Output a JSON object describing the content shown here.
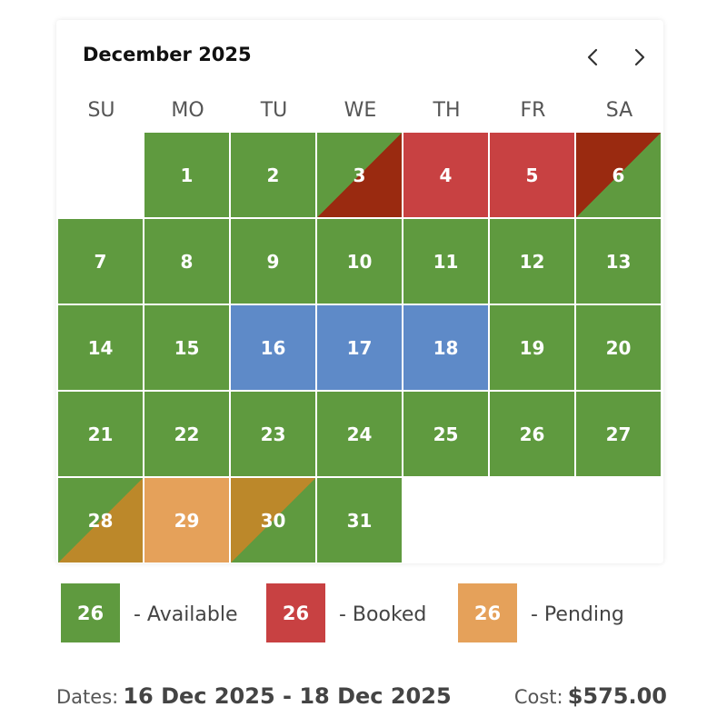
{
  "calendar": {
    "month_title": "December 2025",
    "weekdays": [
      "SU",
      "MO",
      "TU",
      "WE",
      "TH",
      "FR",
      "SA"
    ],
    "days": [
      {
        "label": "1",
        "status": "available"
      },
      {
        "label": "2",
        "status": "available"
      },
      {
        "label": "3",
        "status": "available-to-booked"
      },
      {
        "label": "4",
        "status": "booked"
      },
      {
        "label": "5",
        "status": "booked"
      },
      {
        "label": "6",
        "status": "booked-to-available"
      },
      {
        "label": "7",
        "status": "available"
      },
      {
        "label": "8",
        "status": "available"
      },
      {
        "label": "9",
        "status": "available"
      },
      {
        "label": "10",
        "status": "available"
      },
      {
        "label": "11",
        "status": "available"
      },
      {
        "label": "12",
        "status": "available"
      },
      {
        "label": "13",
        "status": "available"
      },
      {
        "label": "14",
        "status": "available"
      },
      {
        "label": "15",
        "status": "available"
      },
      {
        "label": "16",
        "status": "selected"
      },
      {
        "label": "17",
        "status": "selected"
      },
      {
        "label": "18",
        "status": "selected"
      },
      {
        "label": "19",
        "status": "available"
      },
      {
        "label": "20",
        "status": "available"
      },
      {
        "label": "21",
        "status": "available"
      },
      {
        "label": "22",
        "status": "available"
      },
      {
        "label": "23",
        "status": "available"
      },
      {
        "label": "24",
        "status": "available"
      },
      {
        "label": "25",
        "status": "available"
      },
      {
        "label": "26",
        "status": "available"
      },
      {
        "label": "27",
        "status": "available"
      },
      {
        "label": "28",
        "status": "available-to-pending"
      },
      {
        "label": "29",
        "status": "pending"
      },
      {
        "label": "30",
        "status": "pending-to-available"
      },
      {
        "label": "31",
        "status": "available"
      }
    ],
    "first_weekday_index": 1
  },
  "colors": {
    "available": "#5f9a3f",
    "booked": "#c84142",
    "booked_dark": "#9a2a10",
    "pending": "#e5a15a",
    "pending_dark": "#bc882a",
    "selected": "#5e8ac8"
  },
  "legend": [
    {
      "count": "26",
      "label": "- Available",
      "status": "available"
    },
    {
      "count": "26",
      "label": "- Booked",
      "status": "booked"
    },
    {
      "count": "26",
      "label": "- Pending",
      "status": "pending"
    }
  ],
  "summary": {
    "dates_label": "Dates:",
    "dates_value": "16 Dec 2025 - 18 Dec 2025",
    "cost_label": "Cost:",
    "cost_value": "$575.00"
  }
}
